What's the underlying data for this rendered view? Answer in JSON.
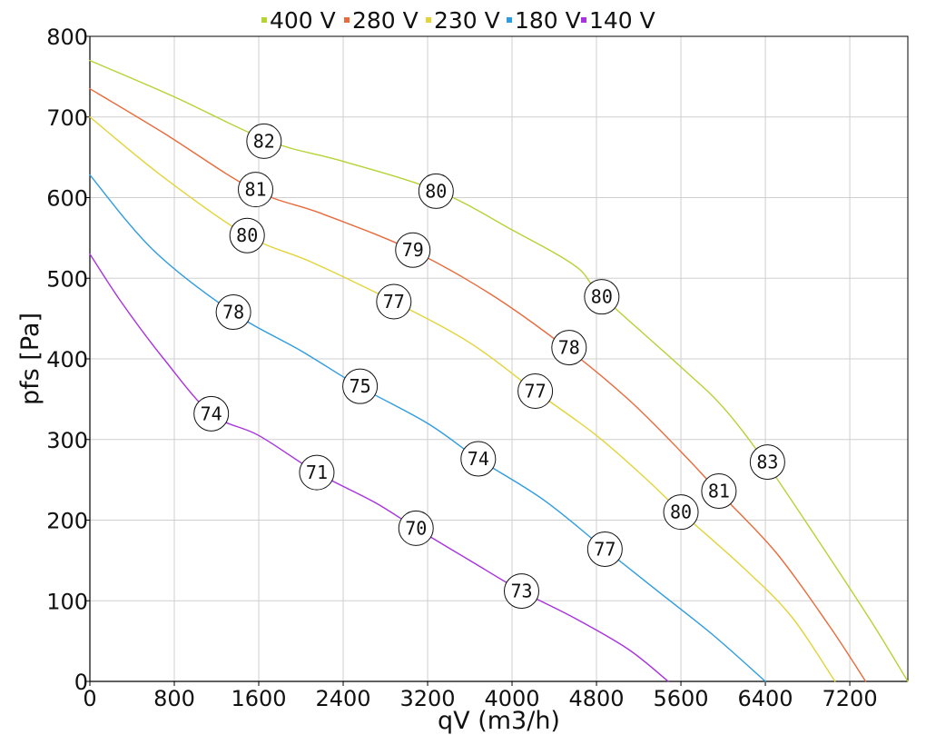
{
  "chart_data": {
    "type": "line",
    "xlabel": "qV (m3/h)",
    "ylabel": "pfs [Pa]",
    "xlim": [
      0,
      7750
    ],
    "ylim": [
      0,
      800
    ],
    "x_ticks": [
      0,
      800,
      1600,
      2400,
      3200,
      4000,
      4800,
      5600,
      6400,
      7200
    ],
    "x_tick_labels": [
      "0",
      "800",
      "1600",
      "2400",
      "3200",
      "4000",
      "4800",
      "5600",
      "6400",
      "7200"
    ],
    "y_ticks": [
      0,
      100,
      200,
      300,
      400,
      500,
      600,
      700,
      800
    ],
    "y_tick_labels": [
      "0",
      "100",
      "200",
      "300",
      "400",
      "500",
      "600",
      "700",
      "800"
    ],
    "grid": true,
    "legend_position": "top-center",
    "series": [
      {
        "name": "400 V",
        "color": "#b5d334",
        "x": [
          0,
          800,
          1700,
          2400,
          3300,
          4000,
          4600,
          4850,
          5600,
          6000,
          6400,
          6900,
          7400,
          7750
        ],
        "y": [
          770,
          725,
          670,
          645,
          608,
          560,
          515,
          478,
          390,
          340,
          272,
          175,
          75,
          0
        ],
        "markers": [
          {
            "x": 1650,
            "y": 670,
            "label": "82"
          },
          {
            "x": 3280,
            "y": 608,
            "label": "80"
          },
          {
            "x": 4850,
            "y": 477,
            "label": "80"
          },
          {
            "x": 6420,
            "y": 272,
            "label": "83"
          }
        ]
      },
      {
        "name": "280 V",
        "color": "#e96a3a",
        "x": [
          0,
          700,
          1550,
          2200,
          3050,
          3800,
          4500,
          5100,
          5600,
          5950,
          6500,
          7000,
          7350
        ],
        "y": [
          735,
          680,
          610,
          580,
          535,
          480,
          415,
          350,
          285,
          236,
          160,
          70,
          0
        ],
        "markers": [
          {
            "x": 1570,
            "y": 610,
            "label": "81"
          },
          {
            "x": 3060,
            "y": 535,
            "label": "79"
          },
          {
            "x": 4540,
            "y": 414,
            "label": "78"
          },
          {
            "x": 5960,
            "y": 236,
            "label": "81"
          }
        ]
      },
      {
        "name": "230 V",
        "color": "#e3d43a",
        "x": [
          0,
          700,
          1490,
          2100,
          2880,
          3600,
          4220,
          4800,
          5280,
          5600,
          6200,
          6650,
          7060
        ],
        "y": [
          700,
          625,
          553,
          520,
          471,
          420,
          360,
          305,
          250,
          210,
          140,
          80,
          0
        ],
        "markers": [
          {
            "x": 1490,
            "y": 553,
            "label": "80"
          },
          {
            "x": 2880,
            "y": 471,
            "label": "77"
          },
          {
            "x": 4220,
            "y": 360,
            "label": "77"
          },
          {
            "x": 5600,
            "y": 210,
            "label": "80"
          }
        ]
      },
      {
        "name": "180 V",
        "color": "#2e9ce0",
        "x": [
          0,
          600,
          1350,
          2000,
          2550,
          3200,
          3680,
          4300,
          4880,
          5400,
          5900,
          6400
        ],
        "y": [
          628,
          535,
          458,
          410,
          366,
          320,
          276,
          225,
          164,
          110,
          58,
          0
        ],
        "markers": [
          {
            "x": 1360,
            "y": 458,
            "label": "78"
          },
          {
            "x": 2560,
            "y": 366,
            "label": "75"
          },
          {
            "x": 3680,
            "y": 276,
            "label": "74"
          },
          {
            "x": 4880,
            "y": 164,
            "label": "77"
          }
        ]
      },
      {
        "name": "140 V",
        "color": "#a832e0",
        "x": [
          0,
          300,
          700,
          1150,
          1600,
          2150,
          2700,
          3090,
          3600,
          4090,
          4600,
          5100,
          5480
        ],
        "y": [
          530,
          470,
          400,
          332,
          305,
          259,
          222,
          190,
          150,
          112,
          78,
          40,
          0
        ],
        "markers": [
          {
            "x": 1150,
            "y": 332,
            "label": "74"
          },
          {
            "x": 2150,
            "y": 259,
            "label": "71"
          },
          {
            "x": 3090,
            "y": 190,
            "label": "70"
          },
          {
            "x": 4090,
            "y": 112,
            "label": "73"
          }
        ]
      }
    ]
  }
}
